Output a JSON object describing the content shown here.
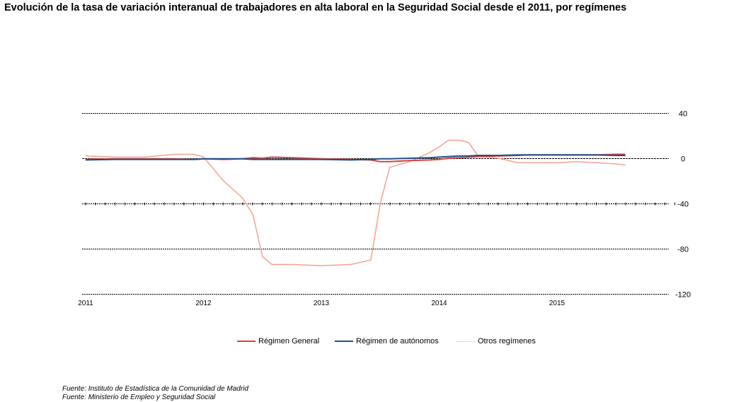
{
  "title": "Evolución de la tasa de variación interanual de trabajadores en alta laboral en la Seguridad Social desde el 2011, por regímenes",
  "sources": [
    "Fuente: Instituto de Estadística de la Comunidad de Madrid",
    "Fuente: Ministerio de Empleo y Seguridad Social"
  ],
  "chart_data": {
    "type": "line",
    "title": "Evolución de la tasa de variación interanual de trabajadores en alta laboral en la Seguridad Social desde el 2011, por regímenes",
    "xlabel": "",
    "ylabel": "",
    "x_ticks": [
      "2011",
      "2012",
      "2013",
      "2014",
      "2015"
    ],
    "y_ticks": [
      40,
      0,
      -40,
      -80,
      -120
    ],
    "ylim": [
      -120,
      40
    ],
    "xlim": [
      2011.0,
      2016.0
    ],
    "grid": true,
    "legend_position": "bottom",
    "x": [
      2011.0,
      2011.25,
      2011.5,
      2011.75,
      2011.92,
      2012.0,
      2012.17,
      2012.33,
      2012.42,
      2012.5,
      2012.58,
      2012.75,
      2013.0,
      2013.25,
      2013.42,
      2013.5,
      2013.58,
      2013.75,
      2013.92,
      2014.0,
      2014.08,
      2014.17,
      2014.25,
      2014.33,
      2014.5,
      2014.67,
      2014.75,
      2014.92,
      2015.0,
      2015.17,
      2015.33,
      2015.5,
      2015.58
    ],
    "series": [
      {
        "name": "Régimen General",
        "color": "#d9423a",
        "values": [
          -1,
          -0.5,
          -0.5,
          -0.5,
          -1,
          -0.5,
          -1,
          -0.5,
          0.5,
          0,
          1,
          0.5,
          -0.5,
          -1,
          -1.5,
          -3,
          -3,
          -2,
          -1.5,
          -1,
          0,
          0.5,
          1,
          1.5,
          2,
          2.5,
          3,
          3,
          3,
          3,
          3,
          3.5,
          3.5
        ]
      },
      {
        "name": "Régimen de autónomos",
        "color": "#1f4e8c",
        "values": [
          -1.5,
          -1,
          -1,
          -1,
          -1,
          -0.5,
          -0.5,
          -0.5,
          -1,
          -1,
          -1,
          -1,
          -1,
          -1.5,
          -1,
          -0.5,
          -0.5,
          0,
          0.5,
          1,
          1.5,
          2,
          2,
          2.5,
          2.5,
          3,
          3,
          3,
          3,
          3,
          3,
          2.5,
          2.5
        ]
      },
      {
        "name": "Otros regímenes",
        "color": "#f4a28c",
        "values": [
          2,
          1,
          1,
          3.5,
          3.5,
          1,
          -20,
          -35,
          -50,
          -87,
          -94,
          -94,
          -95,
          -94,
          -90,
          -40,
          -8,
          -3,
          5,
          10,
          16,
          16,
          14,
          2,
          0,
          -4,
          -4,
          -4,
          -4,
          -3,
          -4,
          -5,
          -6
        ]
      }
    ]
  }
}
